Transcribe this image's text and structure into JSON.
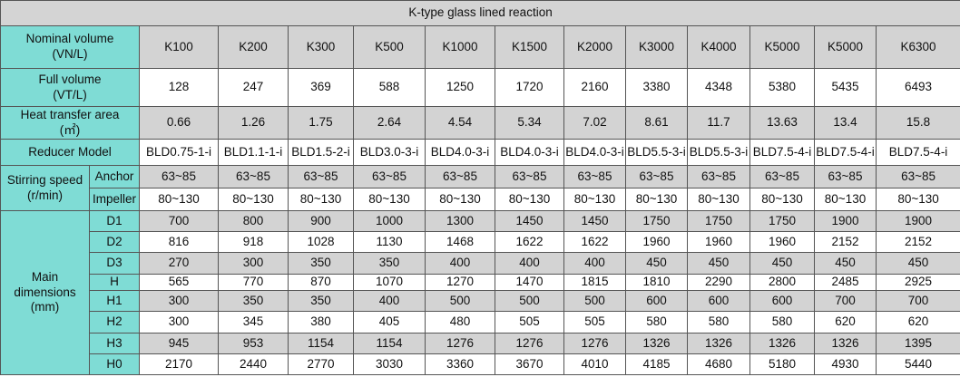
{
  "title": "K-type glass lined reaction",
  "models": [
    "K100",
    "K200",
    "K300",
    "K500",
    "K1000",
    "K1500",
    "K2000",
    "K3000",
    "K4000",
    "K5000",
    "K5000",
    "K6300"
  ],
  "labels": {
    "nominal_volume": [
      "Nominal volume",
      "(VN/L)"
    ],
    "full_volume": [
      "Full volume",
      "(VT/L)"
    ],
    "heat_transfer_area": [
      "Heat transfer area",
      "(㎡)"
    ],
    "reducer_model": "Reducer Model",
    "stirring_speed": [
      "Stirring speed",
      "(r/min)"
    ],
    "main_dimensions": [
      "Main",
      "dimensions",
      "(mm)"
    ]
  },
  "full_volume": [
    "128",
    "247",
    "369",
    "588",
    "1250",
    "1720",
    "2160",
    "3380",
    "4348",
    "5380",
    "5435",
    "6493"
  ],
  "heat_transfer_area": [
    "0.66",
    "1.26",
    "1.75",
    "2.64",
    "4.54",
    "5.34",
    "7.02",
    "8.61",
    "11.7",
    "13.63",
    "13.4",
    "15.8"
  ],
  "reducer_model": [
    "BLD0.75-1-i",
    "BLD1.1-1-i",
    "BLD1.5-2-i",
    "BLD3.0-3-i",
    "BLD4.0-3-i",
    "BLD4.0-3-i",
    "BLD4.0-3-i",
    "BLD5.5-3-i",
    "BLD5.5-3-i",
    "BLD7.5-4-i",
    "BLD7.5-4-i",
    "BLD7.5-4-i"
  ],
  "stirring": [
    {
      "label": "Anchor",
      "values": [
        "63~85",
        "63~85",
        "63~85",
        "63~85",
        "63~85",
        "63~85",
        "63~85",
        "63~85",
        "63~85",
        "63~85",
        "63~85",
        "63~85"
      ]
    },
    {
      "label": "Impeller",
      "values": [
        "80~130",
        "80~130",
        "80~130",
        "80~130",
        "80~130",
        "80~130",
        "80~130",
        "80~130",
        "80~130",
        "80~130",
        "80~130",
        "80~130"
      ]
    }
  ],
  "dimensions": [
    {
      "label": "D1",
      "values": [
        "700",
        "800",
        "900",
        "1000",
        "1300",
        "1450",
        "1450",
        "1750",
        "1750",
        "1750",
        "1900",
        "1900"
      ]
    },
    {
      "label": "D2",
      "values": [
        "816",
        "918",
        "1028",
        "1130",
        "1468",
        "1622",
        "1622",
        "1960",
        "1960",
        "1960",
        "2152",
        "2152"
      ]
    },
    {
      "label": "D3",
      "values": [
        "270",
        "300",
        "350",
        "350",
        "400",
        "400",
        "400",
        "450",
        "450",
        "450",
        "450",
        "450"
      ]
    },
    {
      "label": "H",
      "values": [
        "565",
        "770",
        "870",
        "1070",
        "1270",
        "1470",
        "1815",
        "1810",
        "2290",
        "2800",
        "2485",
        "2925"
      ]
    },
    {
      "label": "H1",
      "values": [
        "300",
        "350",
        "350",
        "400",
        "500",
        "500",
        "500",
        "600",
        "600",
        "600",
        "700",
        "700"
      ]
    },
    {
      "label": "H2",
      "values": [
        "300",
        "345",
        "380",
        "405",
        "480",
        "505",
        "505",
        "580",
        "580",
        "580",
        "620",
        "620"
      ]
    },
    {
      "label": "H3",
      "values": [
        "945",
        "953",
        "1154",
        "1154",
        "1276",
        "1276",
        "1276",
        "1326",
        "1326",
        "1326",
        "1326",
        "1395"
      ]
    },
    {
      "label": "H0",
      "values": [
        "2170",
        "2440",
        "2770",
        "3030",
        "3360",
        "3670",
        "4010",
        "4185",
        "4680",
        "5180",
        "4930",
        "5440"
      ]
    }
  ],
  "colors": {
    "label_bg": "#7fdcd5",
    "stripe_grey": "#d3d3d3",
    "title_bg": "#d4d4d4"
  }
}
